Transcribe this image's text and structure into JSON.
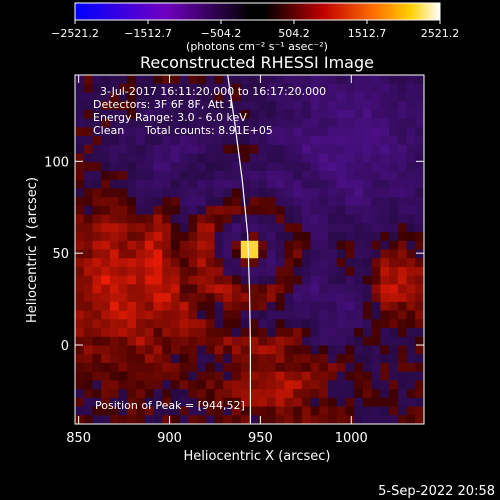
{
  "chart_data": {
    "type": "heatmap",
    "title": "Reconstructed RHESSI Image",
    "xlabel": "Heliocentric X (arcsec)",
    "ylabel": "Heliocentric Y (arcsec)",
    "xlim": [
      848,
      1040
    ],
    "ylim": [
      -43,
      147
    ],
    "x_ticks": [
      850,
      900,
      950,
      1000
    ],
    "y_ticks": [
      0,
      50,
      100
    ],
    "colorbar": {
      "min": -2521.2,
      "max": 2521.2,
      "tick_values": [
        -2521.2,
        -1512.7,
        -504.2,
        504.2,
        1512.7,
        2521.2
      ],
      "tick_labels": [
        "−2521.2",
        "−1512.7",
        "−504.2",
        "504.2",
        "1512.7",
        "2521.2"
      ],
      "unit_label": "(photons cm⁻² s⁻¹ asec⁻²)"
    },
    "annotations": {
      "time_range": "3-Jul-2017 16:11:20.000 to 16:17:20.000",
      "detectors": "Detectors: 3F 6F 8F, Att 1",
      "energy": "Energy Range: 3.0 - 6.0 keV",
      "method": "Clean",
      "counts": "Total counts: 8.91E+05",
      "peak": "Position of Peak = [944,52]"
    },
    "peak": {
      "x": 944,
      "y": 52,
      "value": 2521.2
    },
    "limb_curve": [
      [
        932,
        147
      ],
      [
        936,
        120
      ],
      [
        940,
        90
      ],
      [
        943,
        60
      ],
      [
        944,
        30
      ],
      [
        944.5,
        0
      ],
      [
        944.5,
        -43
      ]
    ],
    "plot_date": "5-Sep-2022 20:58"
  }
}
